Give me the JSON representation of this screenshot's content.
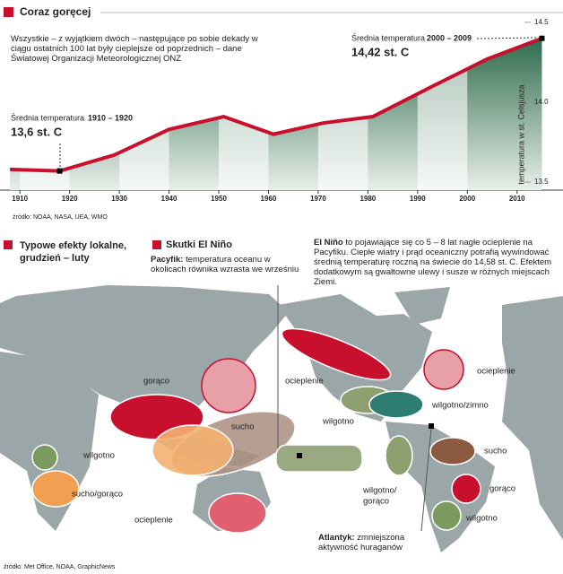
{
  "chart_data": {
    "type": "line",
    "title": "Coraz goręcej",
    "intro": "Wszystkie – z wyjątkiem dwóch – następujące po sobie dekady w ciągu ostatnich 100 lat były cieplejsze od poprzednich – dane Światowej Organizacji Meteorologicznej ONZ",
    "x": [
      1908,
      1918,
      1929,
      1940,
      1951,
      1961,
      1971,
      1981,
      1993,
      2004,
      2015
    ],
    "values": [
      13.58,
      13.57,
      13.67,
      13.83,
      13.91,
      13.8,
      13.87,
      13.91,
      14.1,
      14.27,
      14.4
    ],
    "color": "#c8102e",
    "xlim": [
      1906,
      2016
    ],
    "xticks": [
      1910,
      1920,
      1930,
      1940,
      1950,
      1960,
      1970,
      1980,
      1990,
      2000,
      2010
    ],
    "ylim": [
      13.45,
      14.55
    ],
    "yticks": [
      13.5,
      {
        "value": 14,
        "label": "14.0"
      },
      14.5
    ],
    "y_label": "temperatura w st. Celsjusza",
    "annotations": [
      {
        "label": "Średnia temperatura",
        "period": "1910 – 1920",
        "value": "13,6 st. C"
      },
      {
        "label": "Średnia temperatura",
        "period": "2000 – 2009",
        "value": "14,42 st. C"
      }
    ],
    "source": "źródło: NOAA, NASA, UEA, WMO"
  },
  "map": {
    "heading_local": "Typowe efekty lokalne, grudzień – luty",
    "heading_elnino": "Skutki El Niño",
    "pacific_bold": "Pacyfik:",
    "pacific_text": "temperatura oceanu w okolicach równika wzrasta we wrześniu",
    "elnino_bold": "El Niño",
    "elnino_text": "to pojawiające się co 5 – 8 lat nagłe ocieplenie na Pacyfiku. Ciepłe wiatry i prąd oceaniczny potrafią wywindować średnią temperaturę roczną na świecie do 14,58 st. C. Efektem dodatkowym są gwałtowne ulewy i susze w różnych miejscach Ziemi.",
    "atlantic_bold": "Atlantyk:",
    "atlantic_text": "zmniejszona aktywność huraganów",
    "labels": [
      "gorąco",
      "ocieplenie",
      "ocieplenie",
      "wilgotno/zimno",
      "wilgotno",
      "sucho",
      "wilgotno",
      "sucho/gorąco",
      "ocieplenie",
      "wilgotno/",
      "gorąco",
      "sucho",
      "gorąco",
      "wilgotno"
    ],
    "source": "źródło: Met Office, NOAA, GraphicNews"
  }
}
